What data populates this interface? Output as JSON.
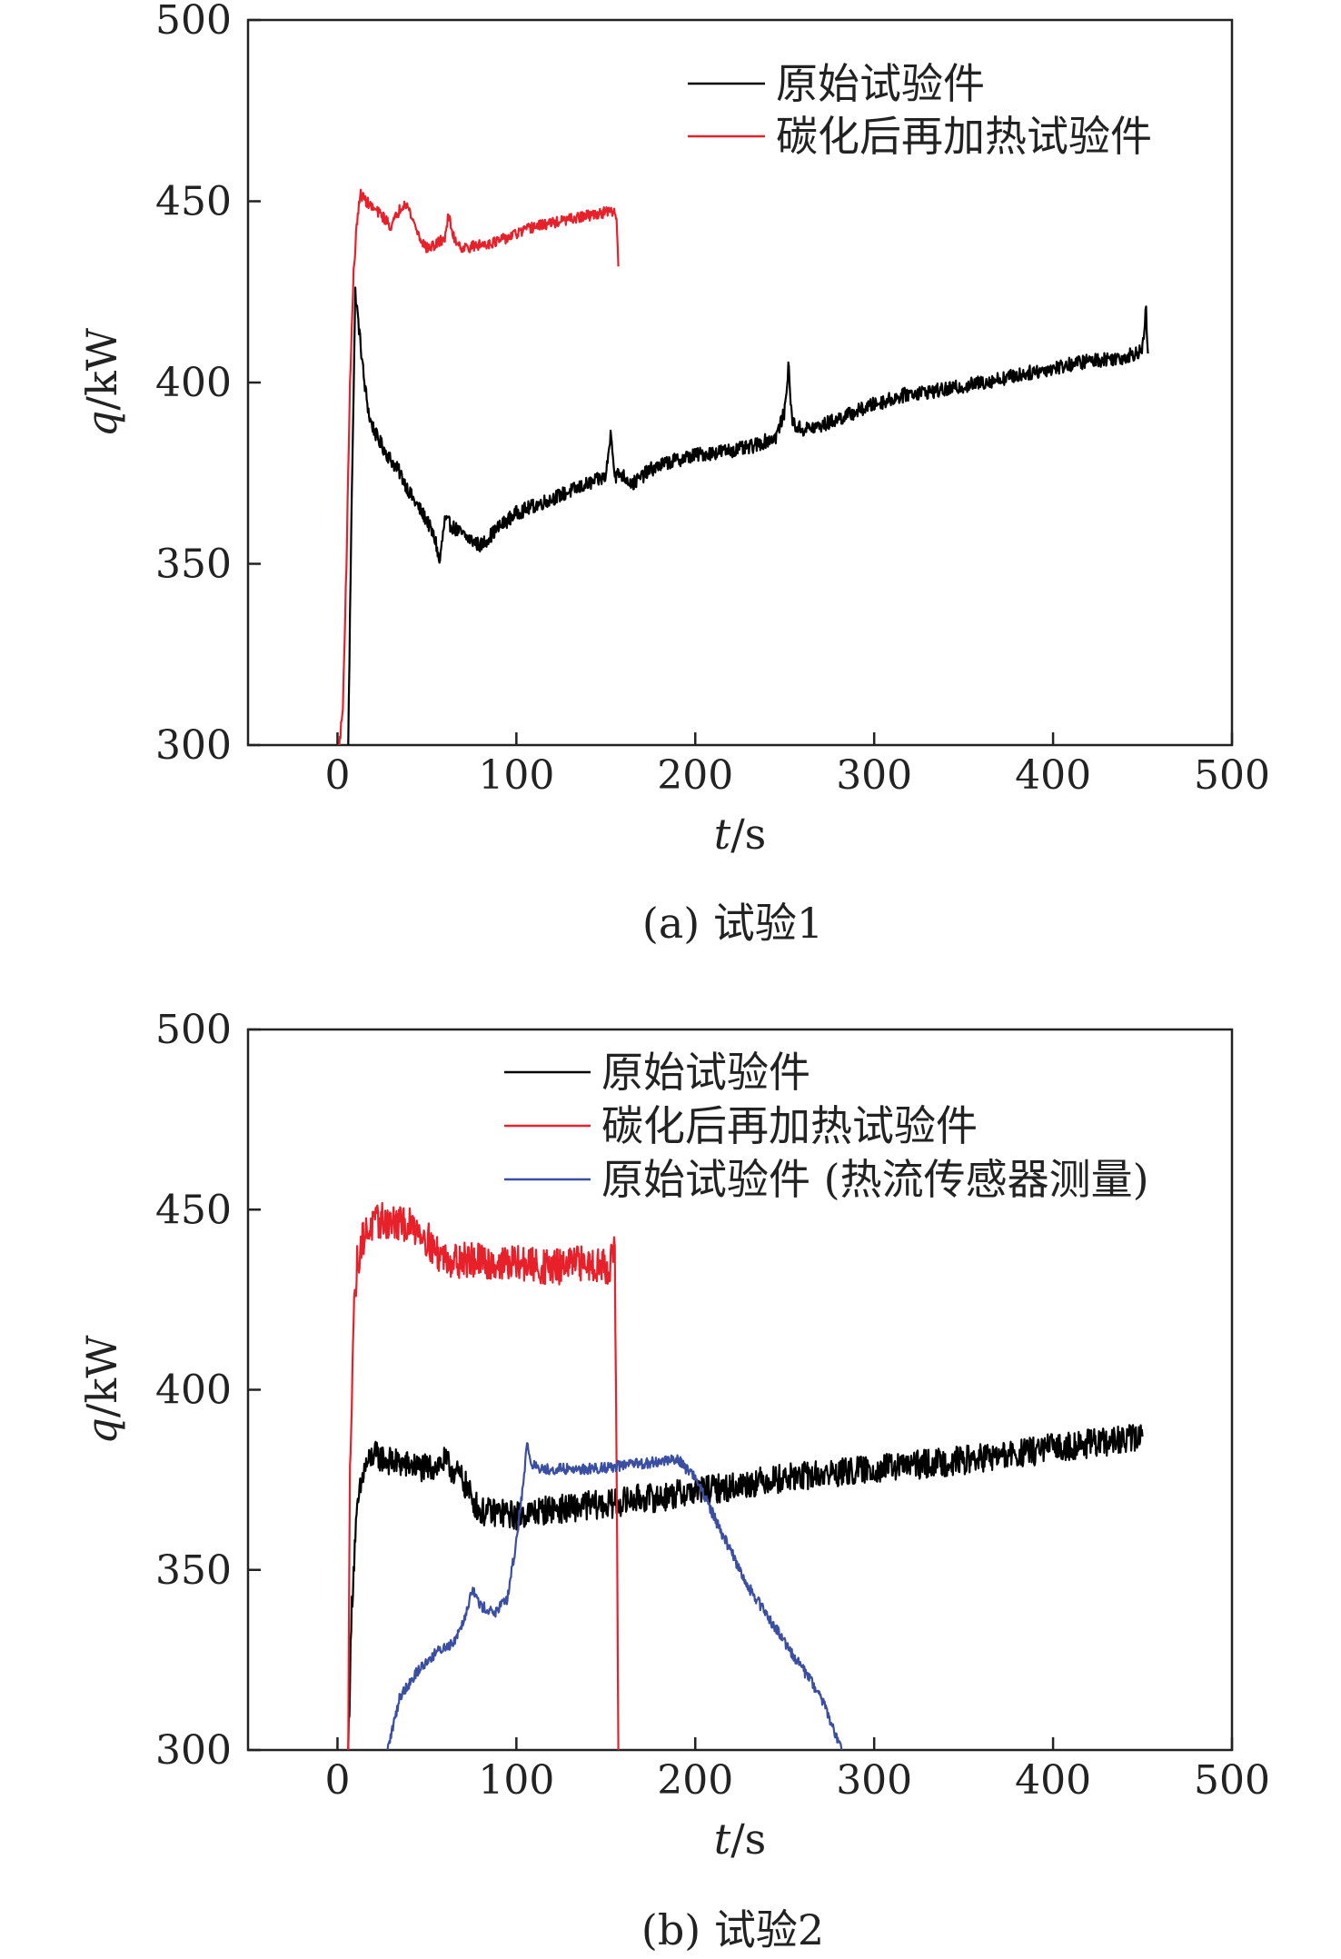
{
  "chart_data": [
    {
      "type": "line",
      "caption": "(a) 试验1",
      "xlabel": "t/s",
      "ylabel": "q/kW",
      "xlim": [
        -50,
        500
      ],
      "ylim": [
        300,
        500
      ],
      "xticks": [
        0,
        100,
        200,
        300,
        400,
        500
      ],
      "yticks": [
        300,
        350,
        400,
        450,
        500
      ],
      "legend_position": "top-right",
      "series": [
        {
          "name": "原始试验件",
          "color": "#000000",
          "noise": 2,
          "x": [
            6,
            8,
            10,
            12,
            15,
            18,
            22,
            28,
            35,
            42,
            50,
            55,
            57,
            60,
            65,
            70,
            80,
            90,
            100,
            110,
            120,
            130,
            140,
            150,
            153,
            155,
            158,
            165,
            175,
            185,
            200,
            215,
            230,
            245,
            250,
            252,
            254,
            256,
            260,
            270,
            285,
            300,
            320,
            340,
            360,
            380,
            400,
            420,
            440,
            450,
            452,
            453
          ],
          "values": [
            300,
            370,
            425,
            415,
            400,
            390,
            385,
            380,
            375,
            368,
            362,
            356,
            350,
            362,
            360,
            358,
            355,
            360,
            364,
            366,
            368,
            370,
            372,
            374,
            387,
            374,
            375,
            372,
            376,
            378,
            380,
            381,
            382,
            385,
            392,
            405,
            390,
            388,
            387,
            388,
            391,
            394,
            397,
            398,
            400,
            402,
            404,
            406,
            407,
            409,
            420,
            408
          ]
        },
        {
          "name": "碳化后再加热试验件",
          "color": "#e8202a",
          "noise": 1.5,
          "x": [
            1,
            3,
            5,
            7,
            9,
            11,
            13,
            16,
            20,
            25,
            30,
            35,
            38,
            42,
            46,
            50,
            55,
            60,
            62,
            65,
            70,
            80,
            90,
            100,
            110,
            120,
            130,
            140,
            150,
            155,
            156,
            157
          ],
          "values": [
            300,
            310,
            350,
            400,
            430,
            445,
            452,
            450,
            448,
            446,
            443,
            448,
            450,
            445,
            440,
            437,
            438,
            440,
            446,
            440,
            437,
            438,
            439,
            441,
            443,
            444,
            445,
            446,
            447,
            447,
            445,
            432
          ]
        }
      ]
    },
    {
      "type": "line",
      "caption": "(b) 试验2",
      "xlabel": "t/s",
      "ylabel": "q/kW",
      "xlim": [
        -50,
        500
      ],
      "ylim": [
        300,
        500
      ],
      "xticks": [
        0,
        100,
        200,
        300,
        400,
        500
      ],
      "yticks": [
        300,
        350,
        400,
        450,
        500
      ],
      "legend_position": "top-right",
      "series": [
        {
          "name": "原始试验件",
          "color": "#000000",
          "noise": 4,
          "x": [
            6,
            8,
            10,
            12,
            15,
            20,
            25,
            30,
            40,
            50,
            60,
            70,
            75,
            80,
            90,
            100,
            110,
            120,
            130,
            140,
            150,
            160,
            170,
            180,
            190,
            200,
            220,
            240,
            260,
            280,
            300,
            320,
            340,
            360,
            380,
            400,
            420,
            440,
            450
          ],
          "values": [
            300,
            340,
            360,
            370,
            378,
            382,
            381,
            380,
            379,
            378,
            380,
            375,
            370,
            366,
            366,
            365,
            366,
            367,
            367,
            368,
            368,
            369,
            370,
            370,
            371,
            372,
            373,
            375,
            376,
            377,
            378,
            379,
            380,
            381,
            382,
            384,
            385,
            386,
            387
          ]
        },
        {
          "name": "碳化后再加热试验件",
          "color": "#e8202a",
          "noise": 5,
          "x": [
            6,
            7,
            9,
            11,
            14,
            18,
            25,
            35,
            45,
            50,
            55,
            65,
            75,
            85,
            95,
            105,
            115,
            125,
            135,
            145,
            152,
            155,
            156,
            157
          ],
          "values": [
            300,
            380,
            420,
            435,
            442,
            445,
            447,
            446,
            445,
            442,
            438,
            436,
            436,
            435,
            435,
            435,
            434,
            434,
            435,
            435,
            434,
            440,
            380,
            300
          ]
        },
        {
          "name": "原始试验件 (热流传感器测量)",
          "color": "#3a4ea2",
          "noise": 1.5,
          "x": [
            28,
            35,
            45,
            55,
            65,
            72,
            75,
            80,
            88,
            95,
            100,
            104,
            106,
            108,
            112,
            120,
            140,
            160,
            180,
            190,
            195,
            200,
            215,
            230,
            250,
            270,
            282
          ],
          "values": [
            300,
            315,
            322,
            327,
            330,
            338,
            345,
            340,
            338,
            342,
            358,
            375,
            385,
            380,
            378,
            378,
            378,
            379,
            380,
            381,
            378,
            376,
            360,
            345,
            330,
            315,
            300
          ]
        }
      ]
    }
  ]
}
